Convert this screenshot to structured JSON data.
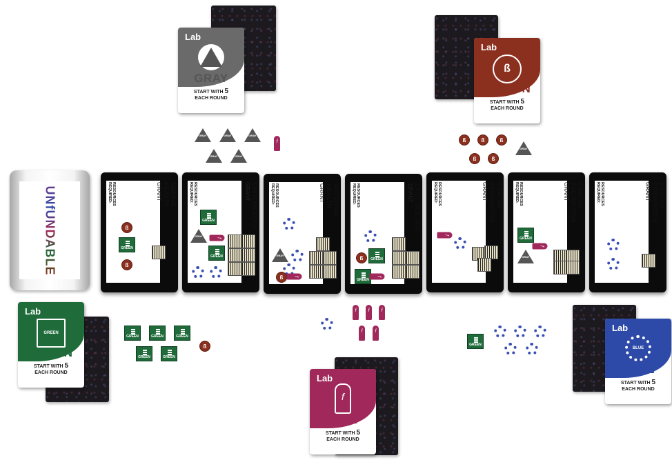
{
  "deck": {
    "logo_text": "UNfUNDABLE"
  },
  "labs": {
    "gray": {
      "lab_label": "Lab",
      "name": "GRAY",
      "emblem_label": "GRAY",
      "start_line": "START WITH",
      "count": "5",
      "each_round": "EACH ROUND",
      "color": "#6a6a6a"
    },
    "brown": {
      "lab_label": "Lab",
      "name": "BROWN",
      "emblem_label": "BROWN",
      "start_line": "START WITH",
      "count": "5",
      "each_round": "EACH ROUND",
      "color": "#8b2f1f"
    },
    "green": {
      "lab_label": "Lab",
      "name": "GREEN",
      "emblem_label": "GREEN",
      "start_line": "START WITH",
      "count": "5",
      "each_round": "EACH ROUND",
      "color": "#1f6b3a"
    },
    "pink": {
      "lab_label": "Lab",
      "name": "PINK",
      "emblem_label": "PINK",
      "start_line": "START WITH",
      "count": "5",
      "each_round": "EACH ROUND",
      "color": "#a0285a"
    },
    "blue": {
      "lab_label": "Lab",
      "name": "BLUE",
      "emblem_label": "BLUE",
      "start_line": "START WITH",
      "count": "5",
      "each_round": "EACH ROUND",
      "color": "#2e4aa8"
    }
  },
  "grants": [
    {
      "line1": "MENTAL",
      "line2": "HEALTH",
      "grant": "GRANT",
      "req": "RESOURCES",
      "req2": "REQUIRED:"
    },
    {
      "line1": "EPIDEMIOLOGY",
      "line2": "",
      "grant": "GRANT",
      "req": "RESOURCES",
      "req2": "REQUIRED:"
    },
    {
      "line1": "MATERNAL",
      "line2": "HEALTH",
      "grant": "GRANT",
      "req": "RESOURCES",
      "req2": "REQUIRED:"
    },
    {
      "line1": "EPIDEMIOLOGY",
      "line2": "",
      "grant": "GRANT",
      "req": "RESOURCES",
      "req2": "REQUIRED:"
    },
    {
      "line1": "CANCER",
      "line2": "PREVENTION",
      "grant": "GRANT",
      "req": "RESOURCES",
      "req2": "REQUIRED:"
    },
    {
      "line1": "CANCER",
      "line2": "PREVENTION",
      "grant": "GRANT",
      "req": "RESOURCES",
      "req2": "REQUIRED:"
    },
    {
      "line1": "CANCER",
      "line2": "PREVENTION",
      "grant": "GRANT",
      "req": "RESOURCES",
      "req2": "REQUIRED:"
    }
  ],
  "tokens": {
    "brown_symbol": "ß",
    "gray_symbol": "GRAY",
    "green_symbol": "GREEN",
    "pink_symbol": "f"
  }
}
